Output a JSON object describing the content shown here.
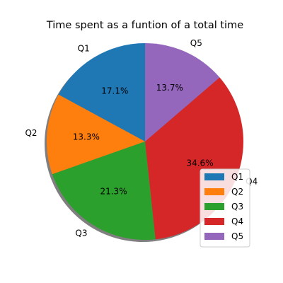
{
  "chart_data": {
    "type": "pie",
    "title": "Time spent as a funtion of a total time",
    "labels": [
      "Q1",
      "Q2",
      "Q3",
      "Q4",
      "Q5"
    ],
    "values": [
      17.1,
      13.3,
      21.3,
      34.6,
      13.7
    ],
    "percent_labels": [
      "17.1%",
      "13.3%",
      "21.3%",
      "34.6%",
      "13.7%"
    ],
    "colors": [
      "#1f77b4",
      "#ff7f0e",
      "#2ca02c",
      "#d62728",
      "#9467bd"
    ],
    "start_angle_deg": 90,
    "direction": "counterclockwise",
    "shadow": true,
    "legend": {
      "placement": "lower-right",
      "entries": [
        "Q1",
        "Q2",
        "Q3",
        "Q4",
        "Q5"
      ]
    }
  }
}
